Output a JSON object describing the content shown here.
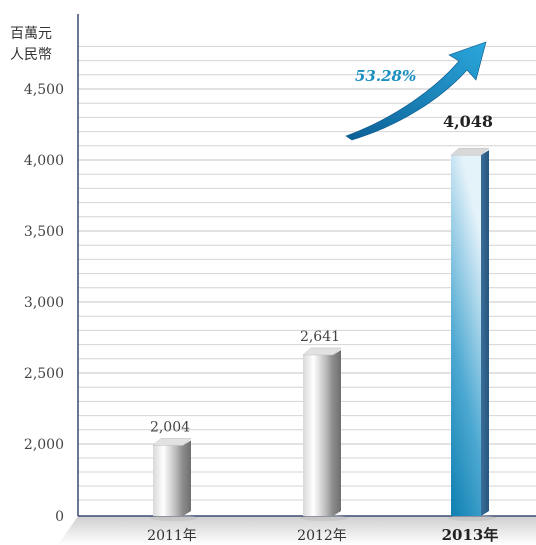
{
  "chart_data": {
    "type": "bar",
    "ylabel_lines": [
      "百萬元",
      "人民幣"
    ],
    "categories": [
      "2011年",
      "2012年",
      "2013年"
    ],
    "values": [
      2004,
      2641,
      4048
    ],
    "value_labels": [
      "2,004",
      "2,641",
      "4,048"
    ],
    "highlight_index": 2,
    "yticks": [
      0,
      2000,
      2500,
      3000,
      3500,
      4000,
      4500
    ],
    "ytick_labels": [
      "0",
      "2,000",
      "2,500",
      "3,000",
      "3,500",
      "4,000",
      "4,500"
    ],
    "axis_break": true,
    "grid": true,
    "growth_label": "53.28%",
    "colors": {
      "normal_bar_light": "#fafafa",
      "normal_bar_dark": "#8a8a8a",
      "highlight_bar_light": "#cfe8f4",
      "highlight_bar_dark": "#0d7fb0",
      "arrow": "#1689bd",
      "axis": "#3a4a72",
      "grid": "#d4d4d4"
    }
  }
}
